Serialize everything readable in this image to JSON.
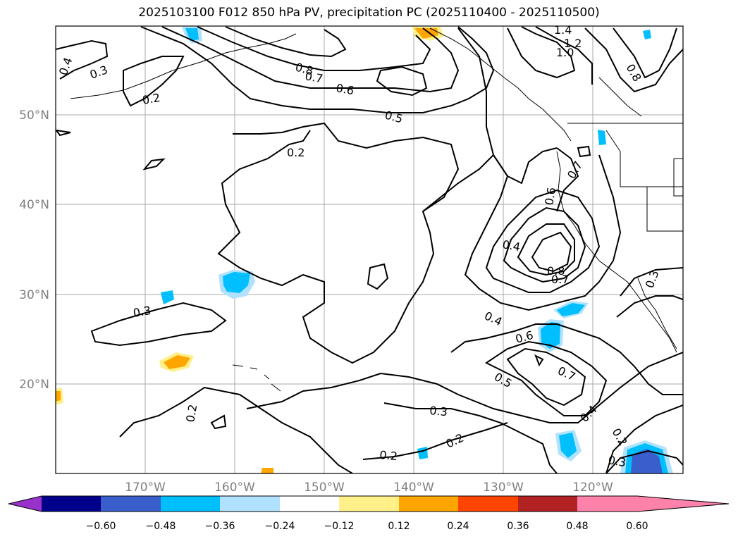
{
  "title": "2025103100 F012 850 hPa PV, precipitation PC (2025110400 - 2025110500)",
  "lat_labels": [
    "20°N",
    "30°N",
    "40°N",
    "50°N"
  ],
  "lon_labels": [
    "170°W",
    "160°W",
    "150°W",
    "140°W",
    "130°W",
    "120°W"
  ],
  "colorbar": {
    "ticks": [
      "−0.60",
      "−0.48",
      "−0.36",
      "−0.24",
      "−0.12",
      "0.12",
      "0.24",
      "0.36",
      "0.48",
      "0.60"
    ],
    "colors": [
      "#9932cc",
      "#00008b",
      "#3a5fcd",
      "#00bfff",
      "#b0e2ff",
      "#ffffff",
      "#fff08a",
      "#ffa500",
      "#ff4500",
      "#b22222",
      "#ff82ab"
    ]
  },
  "contour_labels": [
    "0.4",
    "0.3",
    "0.2",
    "0.8",
    "0.7",
    "0.6",
    "0.5",
    "1.4",
    "1.2",
    "1.0",
    "0.8",
    "0.2",
    "0.7",
    "0.6",
    "0.4",
    "0.8",
    "0.7",
    "0.3",
    "0.3",
    "0.4",
    "0.6",
    "0.5",
    "0.7",
    "0.2",
    "0.3",
    "0.2",
    "0.4",
    "0.2",
    "0.2",
    "0.3"
  ]
}
